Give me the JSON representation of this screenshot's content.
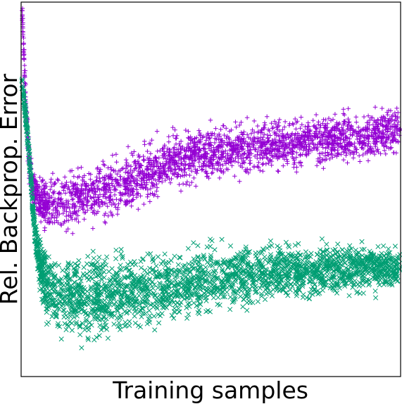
{
  "chart_data": {
    "type": "scatter",
    "xlabel": "Training samples",
    "ylabel": "Rel. Backprop. Error",
    "title": "",
    "x_ticks": "none",
    "y_ticks": "none",
    "grid": false,
    "legend": "none",
    "xlim": [
      0,
      1
    ],
    "ylim": [
      0,
      1
    ],
    "series": [
      {
        "marker": "plus",
        "color": "#9400d3",
        "trend": [
          [
            0.0,
            1.0
          ],
          [
            0.005,
            0.88
          ],
          [
            0.01,
            0.74
          ],
          [
            0.015,
            0.64
          ],
          [
            0.02,
            0.57
          ],
          [
            0.03,
            0.5
          ],
          [
            0.05,
            0.47
          ],
          [
            0.08,
            0.46
          ],
          [
            0.12,
            0.47
          ],
          [
            0.16,
            0.48
          ],
          [
            0.2,
            0.49
          ],
          [
            0.25,
            0.51
          ],
          [
            0.3,
            0.53
          ],
          [
            0.35,
            0.55
          ],
          [
            0.4,
            0.58
          ],
          [
            0.45,
            0.59
          ],
          [
            0.5,
            0.6
          ],
          [
            0.55,
            0.61
          ],
          [
            0.6,
            0.61
          ],
          [
            0.65,
            0.62
          ],
          [
            0.7,
            0.62
          ],
          [
            0.75,
            0.63
          ],
          [
            0.8,
            0.63
          ],
          [
            0.85,
            0.64
          ],
          [
            0.9,
            0.64
          ],
          [
            0.95,
            0.65
          ],
          [
            1.0,
            0.66
          ]
        ],
        "spread": [
          [
            0.0,
            0.03
          ],
          [
            0.03,
            0.05
          ],
          [
            0.1,
            0.07
          ],
          [
            0.3,
            0.07
          ],
          [
            0.5,
            0.06
          ],
          [
            0.7,
            0.06
          ],
          [
            1.0,
            0.06
          ]
        ]
      },
      {
        "marker": "x",
        "color": "#009e73",
        "trend": [
          [
            0.0,
            0.79
          ],
          [
            0.01,
            0.7
          ],
          [
            0.02,
            0.58
          ],
          [
            0.03,
            0.44
          ],
          [
            0.04,
            0.34
          ],
          [
            0.05,
            0.29
          ],
          [
            0.06,
            0.26
          ],
          [
            0.08,
            0.23
          ],
          [
            0.1,
            0.22
          ],
          [
            0.15,
            0.21
          ],
          [
            0.2,
            0.21
          ],
          [
            0.25,
            0.22
          ],
          [
            0.3,
            0.23
          ],
          [
            0.35,
            0.23
          ],
          [
            0.4,
            0.24
          ],
          [
            0.45,
            0.25
          ],
          [
            0.5,
            0.26
          ],
          [
            0.55,
            0.27
          ],
          [
            0.6,
            0.27
          ],
          [
            0.65,
            0.28
          ],
          [
            0.7,
            0.28
          ],
          [
            0.75,
            0.28
          ],
          [
            0.8,
            0.28
          ],
          [
            0.85,
            0.29
          ],
          [
            0.9,
            0.29
          ],
          [
            0.95,
            0.29
          ],
          [
            1.0,
            0.29
          ]
        ],
        "spread": [
          [
            0.0,
            0.02
          ],
          [
            0.04,
            0.04
          ],
          [
            0.06,
            0.09
          ],
          [
            0.2,
            0.1
          ],
          [
            0.4,
            0.08
          ],
          [
            0.6,
            0.07
          ],
          [
            1.0,
            0.05
          ]
        ]
      }
    ]
  }
}
